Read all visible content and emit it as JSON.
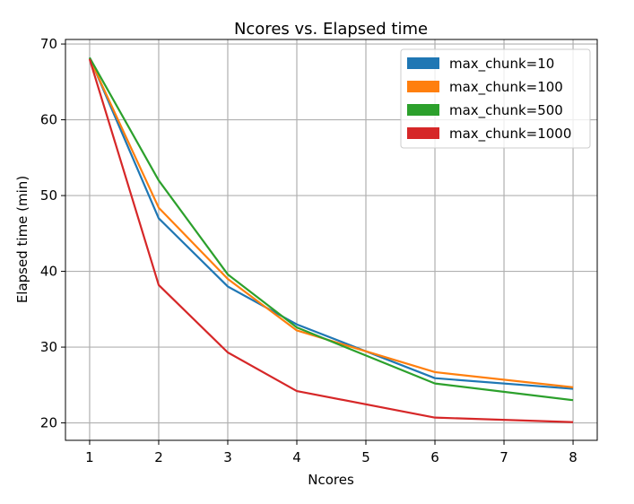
{
  "chart_data": {
    "type": "line",
    "title": "Ncores vs. Elapsed time",
    "xlabel": "Ncores",
    "ylabel": "Elapsed time (min)",
    "xlim": [
      0.65,
      8.35
    ],
    "ylim": [
      17.7,
      70.6
    ],
    "xticks": [
      1,
      2,
      3,
      4,
      5,
      6,
      7,
      8
    ],
    "yticks": [
      20,
      30,
      40,
      50,
      60,
      70
    ],
    "grid": true,
    "legend_position": "top-right",
    "x": [
      1,
      2,
      3,
      4,
      6,
      8
    ],
    "series": [
      {
        "name": "max_chunk=10",
        "color": "#1f77b4",
        "values": [
          68.2,
          47.0,
          38.0,
          33.0,
          25.9,
          24.5
        ]
      },
      {
        "name": "max_chunk=100",
        "color": "#ff7f0e",
        "values": [
          68.1,
          48.4,
          39.0,
          32.2,
          26.7,
          24.7
        ]
      },
      {
        "name": "max_chunk=500",
        "color": "#2ca02c",
        "values": [
          68.2,
          52.0,
          39.6,
          32.6,
          25.2,
          23.0
        ]
      },
      {
        "name": "max_chunk=1000",
        "color": "#d62728",
        "values": [
          68.0,
          38.2,
          29.3,
          24.2,
          20.7,
          20.1
        ]
      }
    ]
  }
}
